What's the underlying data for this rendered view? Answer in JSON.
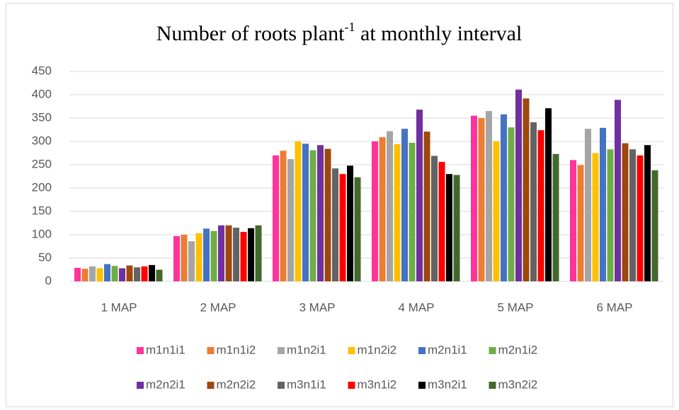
{
  "chart_data": {
    "type": "bar",
    "title": [
      "Number of roots   plant",
      "-1",
      " at monthly interval"
    ],
    "categories": [
      "1 MAP",
      "2 MAP",
      "3 MAP",
      "4 MAP",
      "5 MAP",
      "6 MAP"
    ],
    "series": [
      {
        "name": "m1n1i1",
        "color": "#ff3399",
        "values": [
          29,
          97,
          270,
          300,
          355,
          260
        ]
      },
      {
        "name": "m1n1i2",
        "color": "#ed7d31",
        "values": [
          27,
          100,
          280,
          309,
          350,
          249
        ]
      },
      {
        "name": "m1n2i1",
        "color": "#a5a5a5",
        "values": [
          32,
          86,
          262,
          322,
          365,
          327
        ]
      },
      {
        "name": "m1n2i2",
        "color": "#ffc000",
        "values": [
          28,
          103,
          300,
          294,
          300,
          275
        ]
      },
      {
        "name": "m2n1i1",
        "color": "#4472c4",
        "values": [
          37,
          113,
          295,
          327,
          358,
          329
        ]
      },
      {
        "name": "m2n1i2",
        "color": "#70ad47",
        "values": [
          33,
          108,
          281,
          297,
          330,
          283
        ]
      },
      {
        "name": "m2n2i1",
        "color": "#7030a0",
        "values": [
          28,
          120,
          292,
          368,
          411,
          389
        ]
      },
      {
        "name": "m2n2i2",
        "color": "#9e480e",
        "values": [
          34,
          120,
          284,
          321,
          392,
          296
        ]
      },
      {
        "name": "m3n1i1",
        "color": "#636363",
        "values": [
          30,
          115,
          242,
          269,
          341,
          283
        ]
      },
      {
        "name": "m3n1i2",
        "color": "#ff0000",
        "values": [
          32,
          106,
          230,
          256,
          324,
          270
        ]
      },
      {
        "name": "m3n2i1",
        "color": "#000000",
        "values": [
          35,
          114,
          248,
          230,
          371,
          292
        ]
      },
      {
        "name": "m3n2i2",
        "color": "#43682b",
        "values": [
          25,
          120,
          223,
          228,
          273,
          238
        ]
      }
    ],
    "ylim": [
      0,
      450
    ],
    "yticks": [
      0,
      50,
      100,
      150,
      200,
      250,
      300,
      350,
      400,
      450
    ],
    "grid": true
  }
}
